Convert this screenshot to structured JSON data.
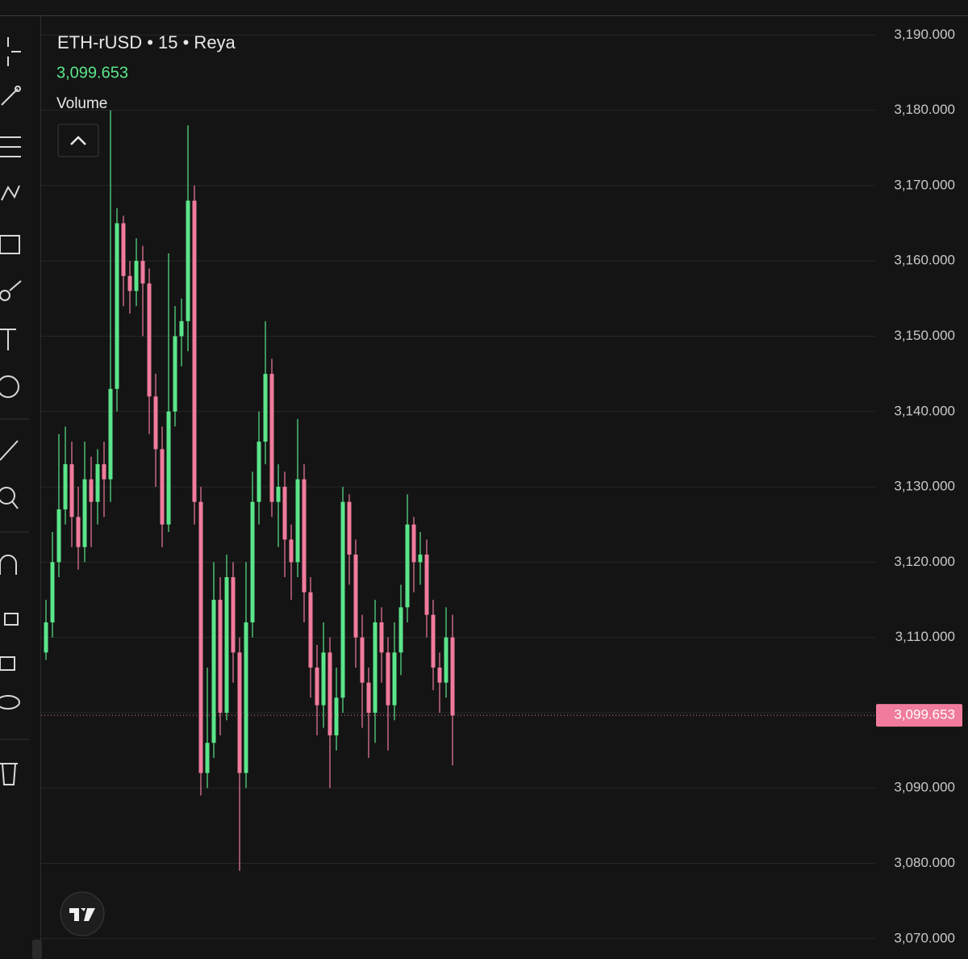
{
  "chart_data": {
    "type": "candlestick",
    "title": "ETH-rUSD • 15 • Reya",
    "indicator": "Volume",
    "last_price": {
      "value": 3099.653,
      "label": "3,099.653"
    },
    "up_color": "#5be58a",
    "down_color": "#f07b9c",
    "grid": true,
    "ylim": [
      3067.3,
      3192.5
    ],
    "yticks": [
      {
        "value": 3070,
        "label": "3,070.000"
      },
      {
        "value": 3080,
        "label": "3,080.000"
      },
      {
        "value": 3090,
        "label": "3,090.000"
      },
      {
        "value": 3100,
        "label": "3,100.000"
      },
      {
        "value": 3110,
        "label": "3,110.000"
      },
      {
        "value": 3120,
        "label": "3,120.000"
      },
      {
        "value": 3130,
        "label": "3,130.000"
      },
      {
        "value": 3140,
        "label": "3,140.000"
      },
      {
        "value": 3150,
        "label": "3,150.000"
      },
      {
        "value": 3160,
        "label": "3,160.000"
      },
      {
        "value": 3170,
        "label": "3,170.000"
      },
      {
        "value": 3180,
        "label": "3,180.000"
      },
      {
        "value": 3190,
        "label": "3,190.000"
      }
    ],
    "open": [
      3108,
      3112,
      3120,
      3127,
      3133,
      3126,
      3122,
      3131,
      3128,
      3133,
      3131,
      3143,
      3165,
      3158,
      3156,
      3160,
      3157,
      3142,
      3135,
      3125,
      3140,
      3150,
      3152,
      3168,
      3128,
      3092,
      3096,
      3115,
      3100,
      3118,
      3108,
      3092,
      3112,
      3128,
      3136,
      3145,
      3128,
      3130,
      3123,
      3120,
      3131,
      3116,
      3106,
      3101,
      3108,
      3097,
      3102,
      3128,
      3121,
      3110,
      3104,
      3100,
      3112,
      3108,
      3101,
      3108,
      3114,
      3125,
      3120,
      3121,
      3113,
      3106,
      3104,
      3110
    ],
    "high": [
      3115,
      3124,
      3137,
      3138,
      3136,
      3130,
      3136,
      3134,
      3135,
      3136,
      3180,
      3167,
      3166,
      3160,
      3163,
      3162,
      3159,
      3145,
      3138,
      3161,
      3154,
      3155,
      3178,
      3170,
      3130,
      3106,
      3120,
      3118,
      3121,
      3120,
      3110,
      3120,
      3132,
      3140,
      3152,
      3147,
      3133,
      3132,
      3125,
      3139,
      3133,
      3118,
      3109,
      3112,
      3110,
      3106,
      3130,
      3129,
      3123,
      3113,
      3106,
      3115,
      3114,
      3110,
      3112,
      3117,
      3129,
      3126,
      3124,
      3123,
      3115,
      3108,
      3114,
      3113
    ],
    "low": [
      3107,
      3110,
      3118,
      3125,
      3122,
      3119,
      3120,
      3122,
      3125,
      3126,
      3128,
      3140,
      3154,
      3153,
      3154,
      3150,
      3137,
      3130,
      3122,
      3124,
      3138,
      3146,
      3148,
      3125,
      3089,
      3090,
      3094,
      3097,
      3099,
      3104,
      3079,
      3090,
      3110,
      3125,
      3133,
      3126,
      3122,
      3118,
      3115,
      3118,
      3112,
      3102,
      3097,
      3098,
      3090,
      3095,
      3100,
      3117,
      3106,
      3098,
      3094,
      3096,
      3104,
      3095,
      3099,
      3105,
      3112,
      3116,
      3117,
      3110,
      3103,
      3100,
      3102,
      3093
    ],
    "close": [
      3112,
      3120,
      3127,
      3133,
      3126,
      3122,
      3131,
      3128,
      3133,
      3131,
      3143,
      3165,
      3158,
      3156,
      3160,
      3157,
      3142,
      3135,
      3125,
      3140,
      3150,
      3152,
      3168,
      3128,
      3092,
      3096,
      3115,
      3100,
      3118,
      3108,
      3092,
      3112,
      3128,
      3136,
      3145,
      3128,
      3130,
      3123,
      3120,
      3131,
      3116,
      3106,
      3101,
      3108,
      3097,
      3102,
      3128,
      3121,
      3110,
      3104,
      3100,
      3112,
      3108,
      3101,
      3108,
      3114,
      3125,
      3120,
      3121,
      3113,
      3106,
      3104,
      3110,
      3099.653
    ]
  }
}
